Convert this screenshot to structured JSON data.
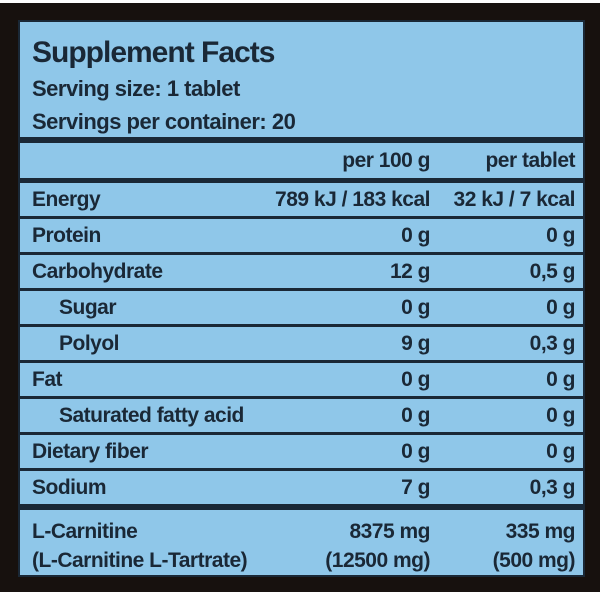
{
  "colors": {
    "panel_blue": "#8FC7E9",
    "text_navy": "#1A2836",
    "background_black": "#17110E",
    "outer_white": "#FDFDFD"
  },
  "facts": {
    "title": "Supplement Facts",
    "serving_size": "Serving size: 1 tablet",
    "servings_per_container": "Servings per container: 20",
    "columns": {
      "per_100g": "per 100 g",
      "per_tablet": "per tablet"
    },
    "rows": [
      {
        "name": "Energy",
        "indent": false,
        "per_100g": "789 kJ / 183 kcal",
        "per_tablet": "32 kJ / 7 kcal"
      },
      {
        "name": "Protein",
        "indent": false,
        "per_100g": "0 g",
        "per_tablet": "0 g"
      },
      {
        "name": "Carbohydrate",
        "indent": false,
        "per_100g": "12 g",
        "per_tablet": "0,5 g"
      },
      {
        "name": "Sugar",
        "indent": true,
        "per_100g": "0 g",
        "per_tablet": "0 g"
      },
      {
        "name": "Polyol",
        "indent": true,
        "per_100g": "9 g",
        "per_tablet": "0,3 g"
      },
      {
        "name": "Fat",
        "indent": false,
        "per_100g": "0 g",
        "per_tablet": "0 g"
      },
      {
        "name": "Saturated fatty acid",
        "indent": true,
        "per_100g": "0 g",
        "per_tablet": "0 g"
      },
      {
        "name": "Dietary fiber",
        "indent": false,
        "per_100g": "0 g",
        "per_tablet": "0 g"
      },
      {
        "name": "Sodium",
        "indent": false,
        "per_100g": "7 g",
        "per_tablet": "0,3 g"
      }
    ],
    "supplement_rows": [
      {
        "name": "L-Carnitine",
        "per_100g": "8375 mg",
        "per_tablet": "335 mg"
      },
      {
        "name": "(L-Carnitine L-Tartrate)",
        "per_100g": "(12500 mg)",
        "per_tablet": "(500 mg)"
      }
    ]
  }
}
